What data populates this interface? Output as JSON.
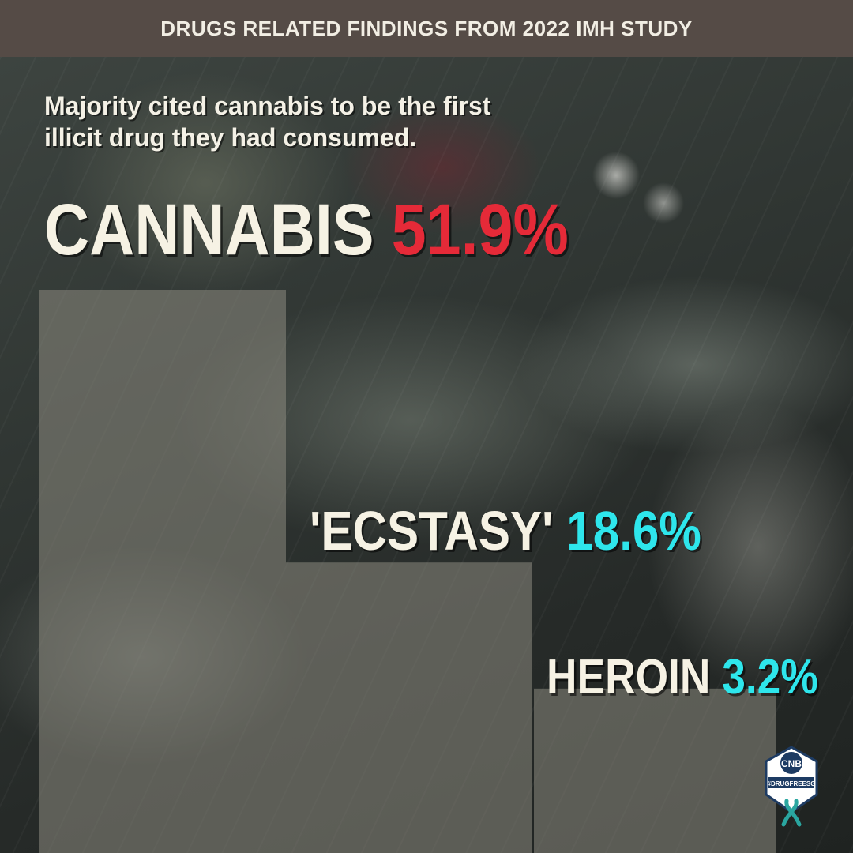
{
  "header": {
    "title": "DRUGS RELATED FINDINGS FROM 2022 IMH STUDY"
  },
  "subtitle": {
    "line1": "Majority cited cannabis to be the first",
    "line2": "illicit drug they had consumed."
  },
  "colors": {
    "header_bg": "#554b46",
    "highlight_red": "#e52a38",
    "highlight_cyan": "#2ee6ec",
    "bar_fill": "#8d8a80"
  },
  "chart_data": {
    "type": "bar",
    "title": "Majority cited cannabis to be the first illicit drug they had consumed.",
    "categories": [
      "CANNABIS",
      "'ECSTASY'",
      "HEROIN"
    ],
    "values": [
      51.9,
      18.6,
      3.2
    ],
    "value_labels": [
      "51.9%",
      "18.6%",
      "3.2%"
    ],
    "units": "%",
    "xlabel": "",
    "ylabel": "",
    "grid": false
  },
  "badge": {
    "org": "CNB",
    "tag": "#DRUGFREESG"
  }
}
